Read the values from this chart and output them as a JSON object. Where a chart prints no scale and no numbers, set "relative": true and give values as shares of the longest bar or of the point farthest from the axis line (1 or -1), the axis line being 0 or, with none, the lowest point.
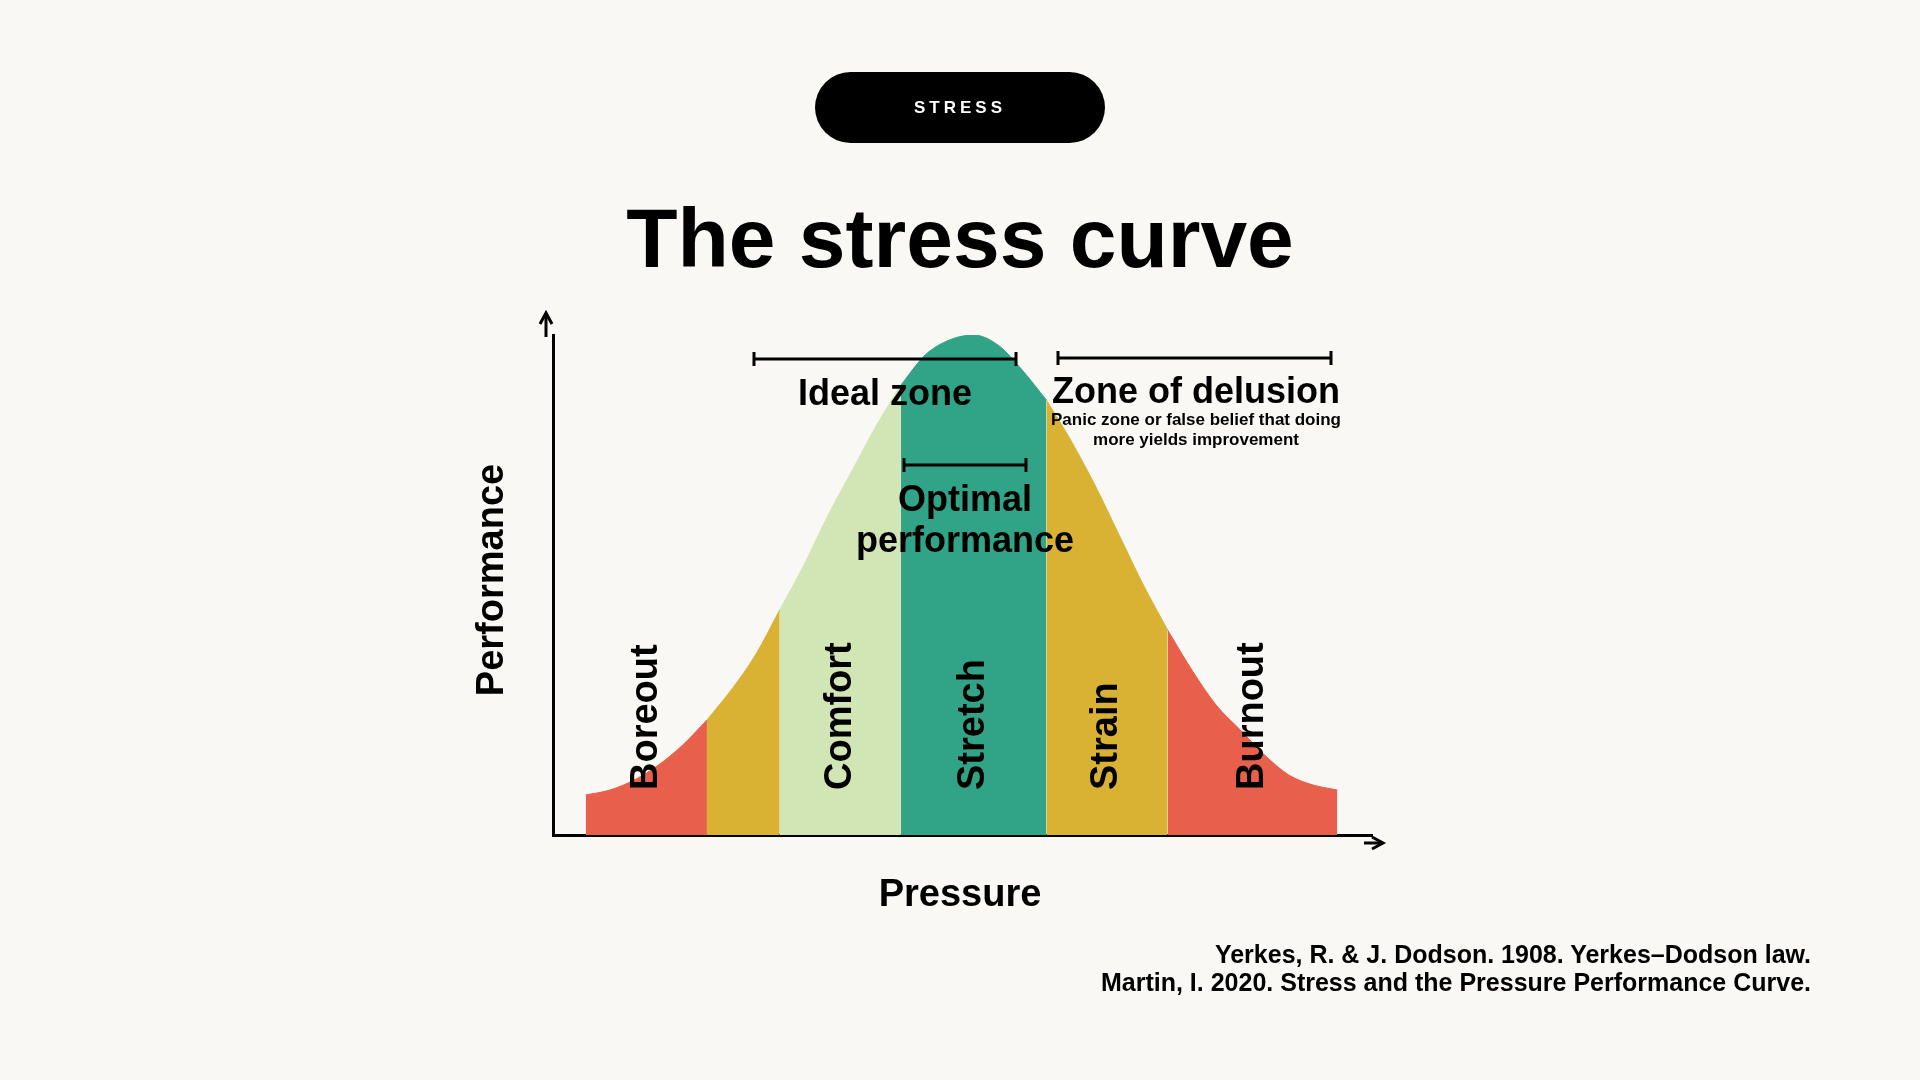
{
  "chart_data": {
    "type": "area",
    "title": "The stress curve",
    "subtitle": "STRESS",
    "xlabel": "Pressure",
    "ylabel": "Performance",
    "relative": true,
    "categories": [
      null,
      null,
      null,
      null,
      null,
      null,
      null,
      null,
      null,
      null,
      null,
      null,
      null,
      null,
      null,
      null,
      null,
      null,
      null,
      null,
      null,
      null,
      null,
      null,
      null,
      null,
      null,
      null,
      null,
      null,
      null,
      null
    ],
    "series": [
      {
        "name": "Boreout",
        "color": "#e8604c",
        "values": [
          0.08,
          0.09,
          0.11,
          0.14,
          0.18,
          0.23,
          null,
          null,
          null,
          null,
          null,
          null,
          null,
          null,
          null,
          null,
          null,
          null,
          null,
          null,
          null,
          null,
          null,
          null,
          null,
          null,
          null,
          null,
          null,
          null,
          null,
          null
        ]
      },
      {
        "color": "#d9b233",
        "values": [
          null,
          null,
          null,
          null,
          null,
          0.23,
          0.29,
          0.36,
          0.45,
          null,
          null,
          null,
          null,
          null,
          null,
          null,
          null,
          null,
          null,
          null,
          null,
          null,
          null,
          null,
          null,
          null,
          null,
          null,
          null,
          null,
          null,
          null
        ]
      },
      {
        "name": "Comfort",
        "color": "#d2e6b5",
        "values": [
          null,
          null,
          null,
          null,
          null,
          null,
          null,
          null,
          0.45,
          0.54,
          0.64,
          0.73,
          0.82,
          0.9,
          null,
          null,
          null,
          null,
          null,
          null,
          null,
          null,
          null,
          null,
          null,
          null,
          null,
          null,
          null,
          null,
          null,
          null
        ]
      },
      {
        "name": "Stretch",
        "color": "#31a386",
        "values": [
          null,
          null,
          null,
          null,
          null,
          null,
          null,
          null,
          null,
          null,
          null,
          null,
          null,
          0.9,
          0.96,
          0.99,
          1,
          0.98,
          0.93,
          0.87,
          null,
          null,
          null,
          null,
          null,
          null,
          null,
          null,
          null,
          null,
          null,
          null
        ]
      },
      {
        "name": "Strain",
        "color": "#d9b233",
        "values": [
          null,
          null,
          null,
          null,
          null,
          null,
          null,
          null,
          null,
          null,
          null,
          null,
          null,
          null,
          null,
          null,
          null,
          null,
          null,
          0.87,
          0.79,
          0.7,
          0.6,
          0.5,
          0.41,
          null,
          null,
          null,
          null,
          null,
          null,
          null
        ]
      },
      {
        "name": "Burnout",
        "color": "#e8604c",
        "values": [
          null,
          null,
          null,
          null,
          null,
          null,
          null,
          null,
          null,
          null,
          null,
          null,
          null,
          null,
          null,
          null,
          null,
          null,
          null,
          null,
          null,
          null,
          null,
          null,
          0.41,
          0.33,
          0.26,
          0.21,
          0.16,
          0.12,
          0.1,
          0.09
        ]
      }
    ],
    "annotations": [
      "Ideal zone",
      "Zone of delusion",
      "Panic zone or false belief that doing more yields improvement",
      "Optimal performance",
      "Yerkes, R. & J. Dodson. 1908. Yerkes–Dodson law.",
      "Martin, I. 2020. Stress and the Pressure Performance Curve."
    ]
  }
}
